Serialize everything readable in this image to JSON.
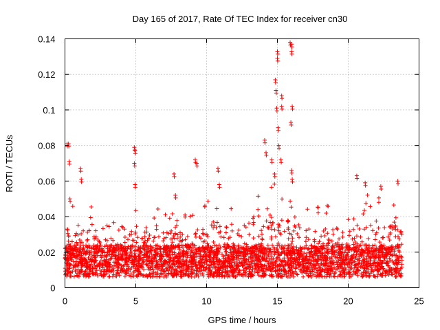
{
  "chart_data": {
    "type": "scatter",
    "title": "Day 165 of 2017, Rate Of TEC Index for receiver cn30",
    "xlabel": "GPS time / hours",
    "ylabel": "ROTI / TECUs",
    "xlim": [
      0,
      25
    ],
    "ylim": [
      0,
      0.14
    ],
    "x_ticks": [
      0,
      5,
      10,
      15,
      20,
      25
    ],
    "x_tick_labels": [
      "0",
      "5",
      "10",
      "15",
      "20",
      "25"
    ],
    "y_ticks": [
      0,
      0.02,
      0.04,
      0.06,
      0.08,
      0.1,
      0.12,
      0.14
    ],
    "y_tick_labels": [
      "0",
      "0.02",
      "0.04",
      "0.06",
      "0.08",
      "0.1",
      "0.12",
      "0.14"
    ],
    "grid": true,
    "marker": "+",
    "color": "#ff0000",
    "x_data_range": [
      0,
      23.8
    ],
    "notable_points": [
      {
        "x": 0.15,
        "y": 0.081
      },
      {
        "x": 0.25,
        "y": 0.081
      },
      {
        "x": 0.3,
        "y": 0.071
      },
      {
        "x": 0.35,
        "y": 0.05
      },
      {
        "x": 1.1,
        "y": 0.067
      },
      {
        "x": 1.15,
        "y": 0.061
      },
      {
        "x": 4.9,
        "y": 0.079
      },
      {
        "x": 4.95,
        "y": 0.077
      },
      {
        "x": 4.9,
        "y": 0.07
      },
      {
        "x": 4.95,
        "y": 0.058
      },
      {
        "x": 7.7,
        "y": 0.064
      },
      {
        "x": 7.8,
        "y": 0.052
      },
      {
        "x": 9.2,
        "y": 0.072
      },
      {
        "x": 9.3,
        "y": 0.07
      },
      {
        "x": 10.8,
        "y": 0.067
      },
      {
        "x": 10.9,
        "y": 0.058
      },
      {
        "x": 14.1,
        "y": 0.083
      },
      {
        "x": 14.2,
        "y": 0.076
      },
      {
        "x": 14.6,
        "y": 0.072
      },
      {
        "x": 14.8,
        "y": 0.064
      },
      {
        "x": 14.85,
        "y": 0.117
      },
      {
        "x": 14.9,
        "y": 0.111
      },
      {
        "x": 14.95,
        "y": 0.101
      },
      {
        "x": 15.0,
        "y": 0.133
      },
      {
        "x": 15.0,
        "y": 0.129
      },
      {
        "x": 15.05,
        "y": 0.09
      },
      {
        "x": 15.1,
        "y": 0.08
      },
      {
        "x": 15.3,
        "y": 0.108
      },
      {
        "x": 15.3,
        "y": 0.102
      },
      {
        "x": 15.25,
        "y": 0.072
      },
      {
        "x": 15.9,
        "y": 0.138
      },
      {
        "x": 16.0,
        "y": 0.137
      },
      {
        "x": 16.0,
        "y": 0.133
      },
      {
        "x": 16.05,
        "y": 0.102
      },
      {
        "x": 15.95,
        "y": 0.093
      },
      {
        "x": 16.0,
        "y": 0.066
      },
      {
        "x": 16.05,
        "y": 0.061
      },
      {
        "x": 20.6,
        "y": 0.063
      },
      {
        "x": 21.2,
        "y": 0.059
      },
      {
        "x": 22.3,
        "y": 0.057
      },
      {
        "x": 23.5,
        "y": 0.06
      }
    ],
    "bulk_description_envelope": [
      {
        "x": 0,
        "y": 0.05
      },
      {
        "x": 1,
        "y": 0.045
      },
      {
        "x": 2,
        "y": 0.05
      },
      {
        "x": 3,
        "y": 0.04
      },
      {
        "x": 4,
        "y": 0.05
      },
      {
        "x": 5,
        "y": 0.045
      },
      {
        "x": 6,
        "y": 0.045
      },
      {
        "x": 7,
        "y": 0.045
      },
      {
        "x": 8,
        "y": 0.045
      },
      {
        "x": 9,
        "y": 0.045
      },
      {
        "x": 10,
        "y": 0.05
      },
      {
        "x": 11,
        "y": 0.055
      },
      {
        "x": 12,
        "y": 0.045
      },
      {
        "x": 13,
        "y": 0.055
      },
      {
        "x": 14,
        "y": 0.06
      },
      {
        "x": 15,
        "y": 0.06
      },
      {
        "x": 16,
        "y": 0.055
      },
      {
        "x": 17,
        "y": 0.05
      },
      {
        "x": 18,
        "y": 0.045
      },
      {
        "x": 19,
        "y": 0.05
      },
      {
        "x": 20,
        "y": 0.045
      },
      {
        "x": 21,
        "y": 0.055
      },
      {
        "x": 22,
        "y": 0.05
      },
      {
        "x": 23,
        "y": 0.055
      },
      {
        "x": 23.8,
        "y": 0.05
      }
    ]
  }
}
